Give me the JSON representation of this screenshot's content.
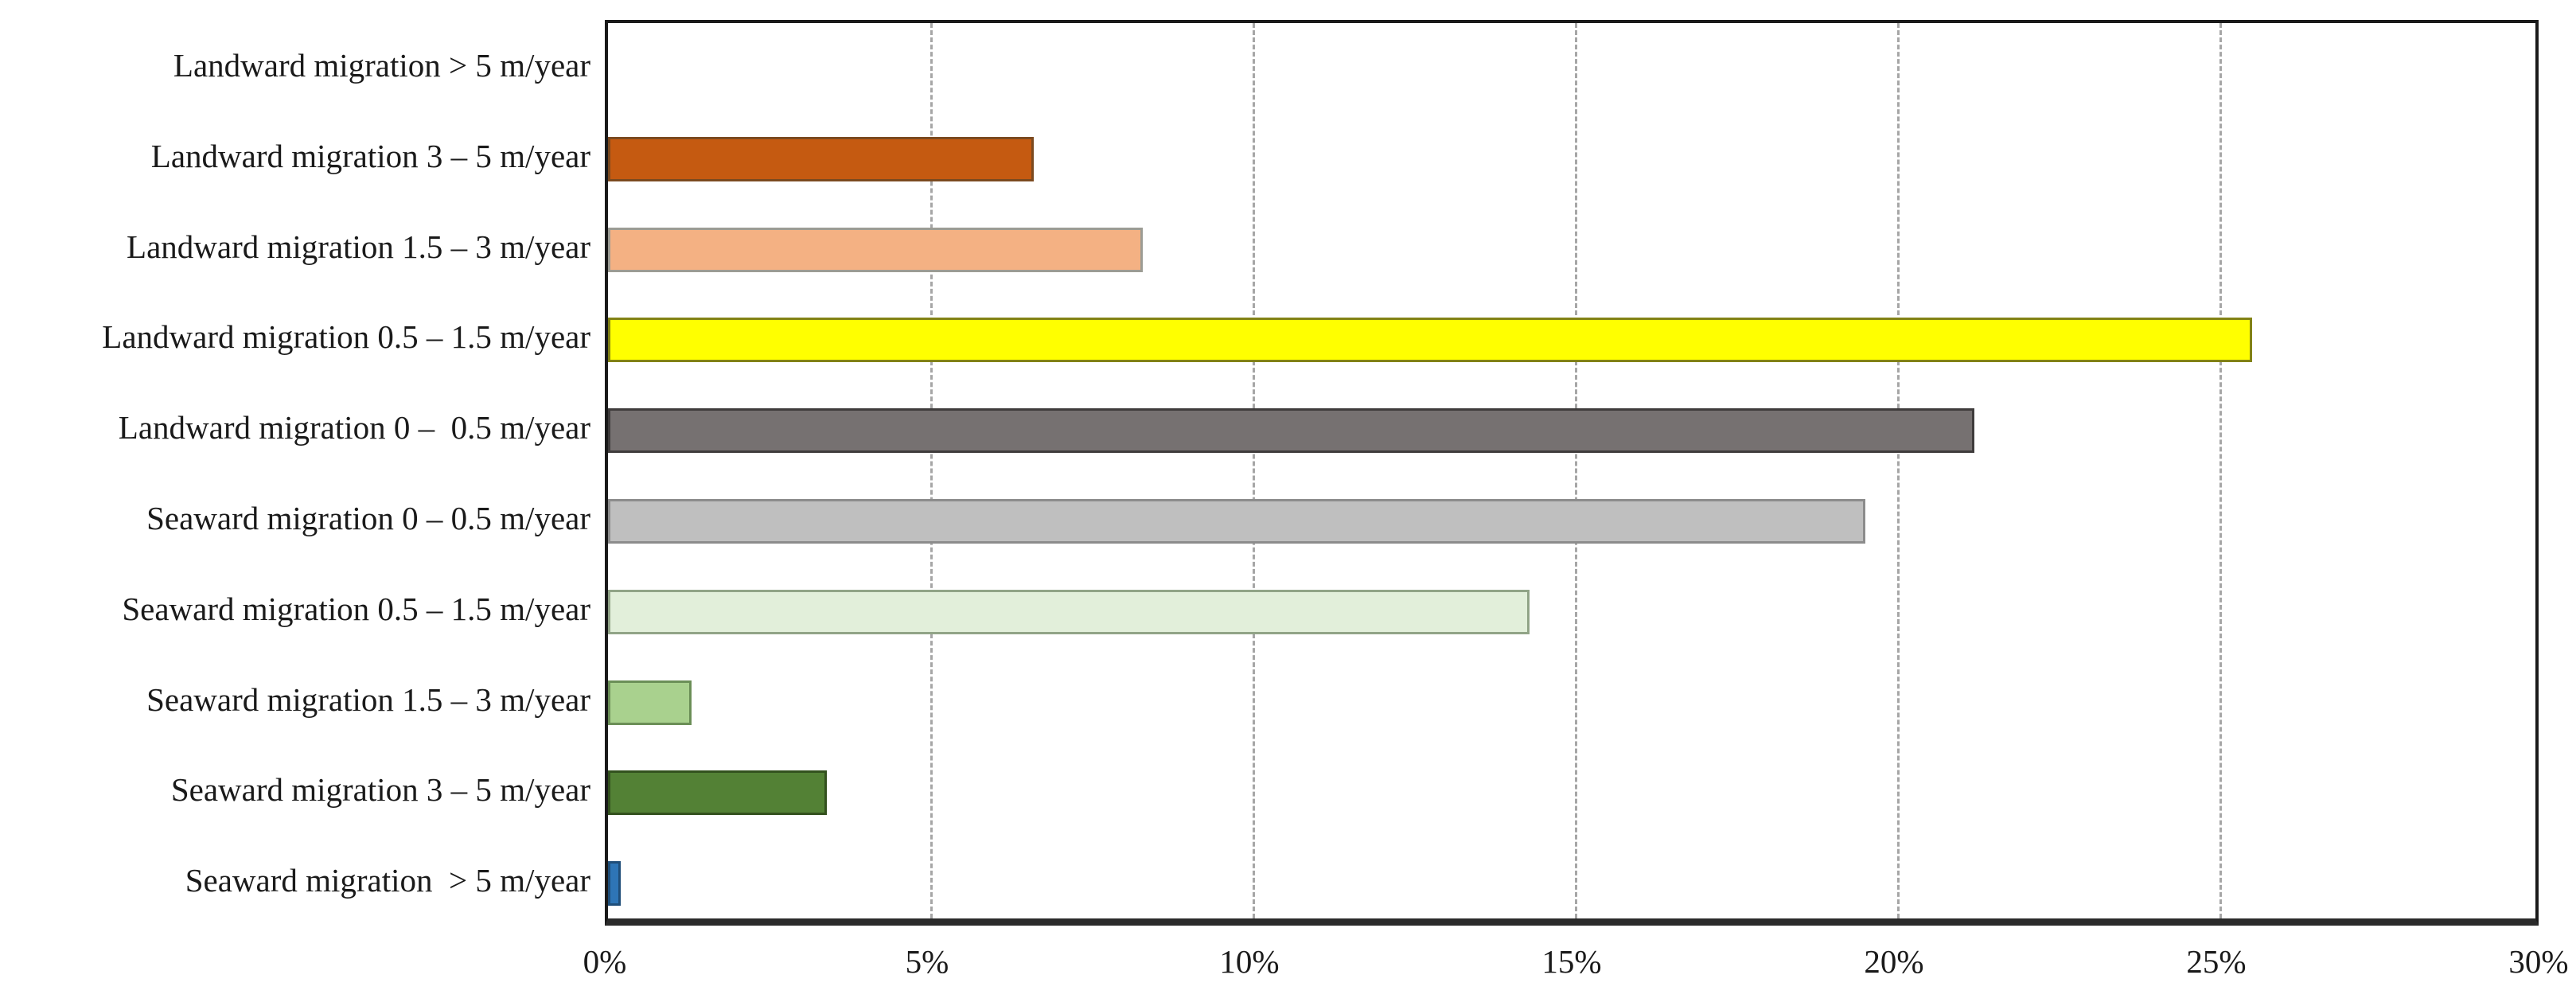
{
  "chart_data": {
    "type": "bar",
    "orientation": "horizontal",
    "title": "",
    "xlabel": "",
    "ylabel": "",
    "xlim": [
      0,
      30
    ],
    "grid": "vertical-dashed",
    "grid_color": "#a6a6a6",
    "axis_color": "#1a1a1a",
    "categories": [
      "Landward migration > 5 m/year",
      "Landward migration 3 – 5 m/year",
      "Landward migration 1.5 – 3 m/year",
      "Landward migration 0.5 – 1.5 m/year",
      "Landward migration 0 –  0.5 m/year",
      "Seaward migration 0 – 0.5 m/year",
      "Seaward migration 0.5 – 1.5 m/year",
      "Seaward migration 1.5 – 3 m/year",
      "Seaward migration 3 – 5 m/year",
      "Seaward migration  > 5 m/year"
    ],
    "values": [
      0,
      6.6,
      8.3,
      25.5,
      21.2,
      19.5,
      14.3,
      1.3,
      3.4,
      0.2
    ],
    "unit": "%",
    "colors": [
      "none",
      "#c55a11",
      "#f4b183",
      "#ffff00",
      "#767171",
      "#bfbfbf",
      "#e2efda",
      "#a9d18e",
      "#538135",
      "#2e75b6"
    ],
    "border_colors": [
      "none",
      "#7b4a20",
      "#9c9c94",
      "#828213",
      "#3f3c3c",
      "#8c8c8c",
      "#91a487",
      "#6b8f57",
      "#33511e",
      "#1f4e79"
    ],
    "x_ticks": {
      "values": [
        0,
        5,
        10,
        15,
        20,
        25,
        30
      ],
      "labels": [
        "0%",
        "5%",
        "10%",
        "15%",
        "20%",
        "25%",
        "30%"
      ]
    },
    "legend": "none"
  }
}
